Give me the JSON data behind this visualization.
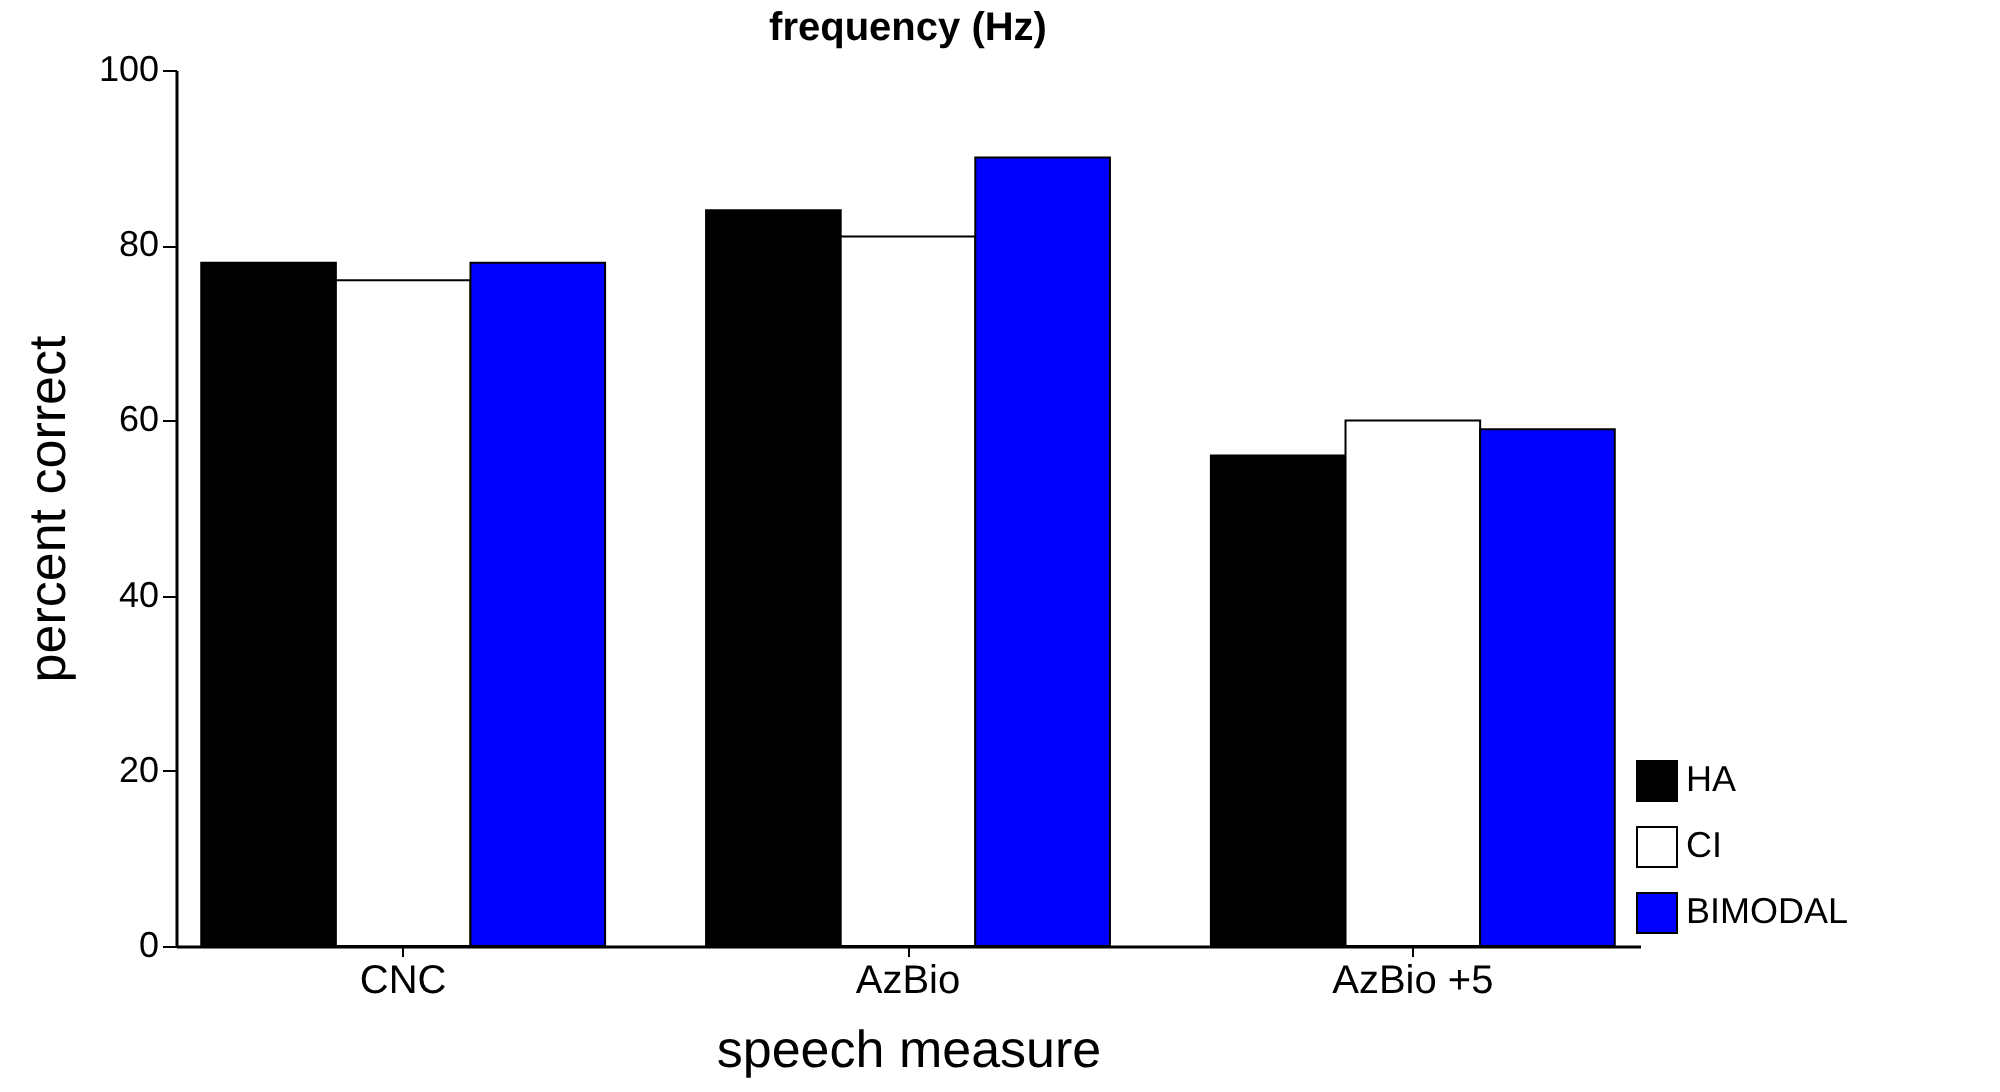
{
  "chart_data": {
    "type": "bar",
    "xlabel": "speech measure",
    "ylabel": "percent correct",
    "annotations": [
      "frequency (Hz)"
    ],
    "categories": [
      "CNC",
      "AzBio",
      "AzBio +5"
    ],
    "series": [
      {
        "name": "HA",
        "color": "#000000",
        "values": [
          78,
          84,
          56
        ]
      },
      {
        "name": "CI",
        "color": "#ffffff",
        "values": [
          76,
          81,
          60
        ]
      },
      {
        "name": "BIMODAL",
        "color": "#0000ff",
        "values": [
          78,
          90,
          59
        ]
      }
    ],
    "ylim": [
      0,
      100
    ],
    "yticks": [
      0,
      20,
      40,
      60,
      80,
      100
    ],
    "legend": "bottom right"
  }
}
